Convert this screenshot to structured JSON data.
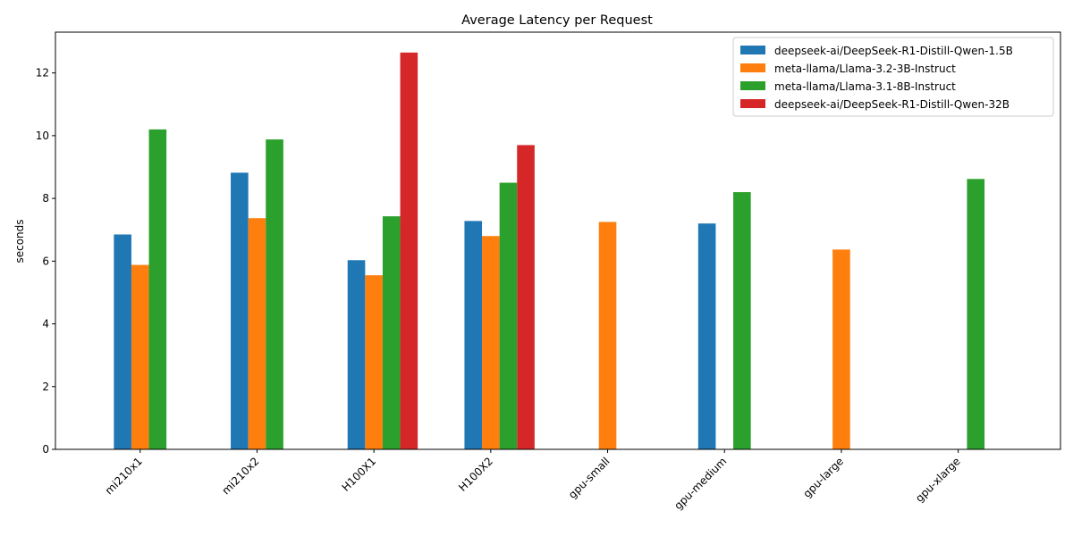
{
  "chart_data": {
    "type": "bar",
    "title": "Average Latency per Request",
    "xlabel": "",
    "ylabel": "seconds",
    "categories": [
      "mi210x1",
      "mi210x2",
      "H100X1",
      "H100X2",
      "gpu-small",
      "gpu-medium",
      "gpu-large",
      "gpu-xlarge"
    ],
    "ylim": [
      0,
      13.3
    ],
    "yticks": [
      0,
      2,
      4,
      6,
      8,
      10,
      12
    ],
    "grid": false,
    "legend_position": "top-right",
    "series": [
      {
        "name": "deepseek-ai/DeepSeek-R1-Distill-Qwen-1.5B",
        "color": "#1f77b4",
        "values": [
          6.85,
          8.82,
          6.03,
          7.28,
          null,
          7.2,
          null,
          null
        ]
      },
      {
        "name": "meta-llama/Llama-3.2-3B-Instruct",
        "color": "#ff7f0e",
        "values": [
          5.88,
          7.37,
          5.55,
          6.8,
          7.25,
          null,
          6.37,
          null
        ]
      },
      {
        "name": "meta-llama/Llama-3.1-8B-Instruct",
        "color": "#2ca02c",
        "values": [
          10.2,
          9.88,
          7.43,
          8.5,
          null,
          8.2,
          null,
          8.62
        ]
      },
      {
        "name": "deepseek-ai/DeepSeek-R1-Distill-Qwen-32B",
        "color": "#d62728",
        "values": [
          null,
          null,
          12.65,
          9.7,
          null,
          null,
          null,
          null
        ]
      }
    ]
  }
}
